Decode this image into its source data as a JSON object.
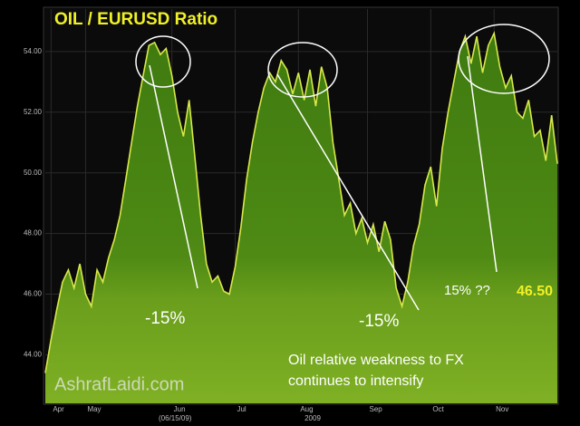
{
  "chart_data": {
    "type": "area",
    "title": "OIL / EURUSD Ratio",
    "categories": [
      null,
      "Apr",
      null,
      null,
      null,
      null,
      null,
      "May",
      null,
      null,
      null,
      null,
      null,
      null,
      null,
      null,
      null,
      null,
      null,
      null,
      null,
      null,
      "Jun",
      null,
      null,
      null,
      null,
      null,
      null,
      null,
      null,
      null,
      null,
      "Jul",
      null,
      null,
      null,
      null,
      null,
      null,
      null,
      null,
      null,
      null,
      "Aug",
      null,
      null,
      null,
      null,
      null,
      null,
      null,
      null,
      null,
      null,
      null,
      "Sep",
      null,
      null,
      null,
      null,
      null,
      null,
      null,
      null,
      null,
      null,
      "Oct",
      null,
      null,
      null,
      null,
      null,
      null,
      null,
      null,
      null,
      null,
      "Nov",
      null,
      null,
      null,
      null,
      null,
      null,
      null,
      null,
      null,
      null,
      null
    ],
    "values": [
      43.4,
      44.5,
      45.5,
      46.4,
      46.8,
      46.2,
      47.0,
      46.0,
      45.6,
      46.8,
      46.4,
      47.2,
      47.8,
      48.6,
      49.8,
      51.0,
      52.2,
      53.2,
      54.2,
      54.3,
      53.9,
      54.1,
      53.2,
      52.0,
      51.2,
      52.4,
      50.5,
      48.6,
      47.0,
      46.4,
      46.6,
      46.1,
      46.0,
      46.9,
      48.2,
      49.8,
      51.0,
      52.0,
      52.8,
      53.3,
      53.0,
      53.7,
      53.4,
      52.6,
      53.3,
      52.4,
      53.4,
      52.2,
      53.5,
      52.8,
      51.0,
      49.8,
      48.6,
      49.0,
      48.0,
      48.5,
      47.7,
      48.3,
      47.4,
      48.4,
      47.8,
      46.2,
      45.6,
      46.4,
      47.6,
      48.3,
      49.6,
      50.2,
      48.9,
      50.8,
      52.0,
      53.0,
      54.0,
      54.5,
      53.6,
      54.5,
      53.3,
      54.2,
      54.6,
      53.5,
      52.8,
      53.2,
      52.0,
      51.8,
      52.4,
      51.2,
      51.4,
      50.4,
      51.9,
      50.3
    ],
    "color": "#d8e84a",
    "ylim": [
      42.4,
      55.4
    ],
    "yticks": [
      {
        "value": 44,
        "label": "44.00"
      },
      {
        "value": 46,
        "label": "46.00"
      },
      {
        "value": 48,
        "label": "48.00"
      },
      {
        "value": 50,
        "label": "50.00"
      },
      {
        "value": 52,
        "label": "52.00"
      },
      {
        "value": 54,
        "label": "54.00"
      }
    ],
    "grid": true,
    "x_axis_label": "2009",
    "date_marker": "(06/15/09)",
    "annotations": [
      "-15%",
      "-15%",
      "15% ??",
      "46.50",
      "Oil relative weakness to FX",
      "continues to intensify",
      "AshrafLaidi.com"
    ]
  }
}
